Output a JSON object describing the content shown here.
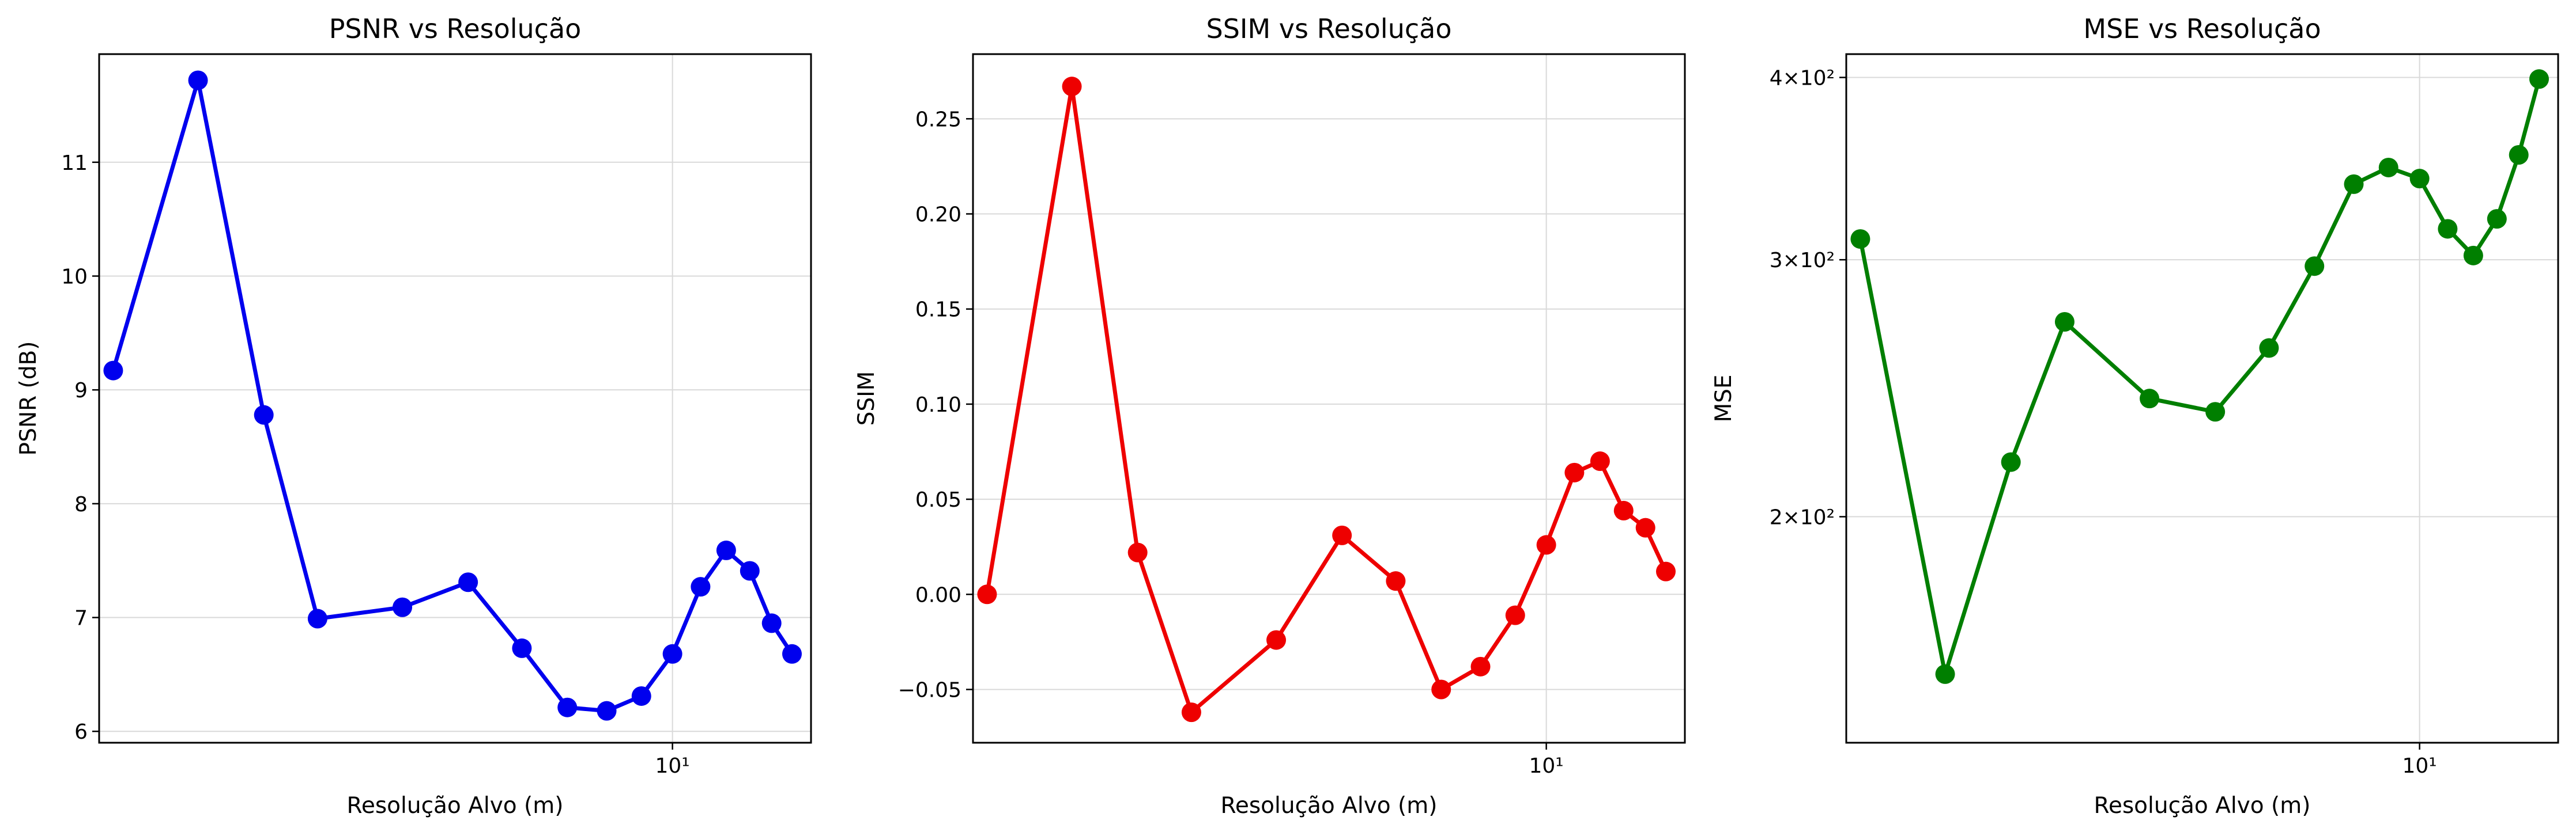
{
  "chart_data": [
    {
      "type": "line",
      "title": "PSNR vs Resolução",
      "xlabel": "Resolução Alvo (m)",
      "ylabel": "PSNR (dB)",
      "xscale": "log",
      "yscale": "linear",
      "xlim": [
        1.43,
        16.0
      ],
      "ylim": [
        5.9,
        11.95
      ],
      "yticks": [
        6,
        7,
        8,
        9,
        10,
        11
      ],
      "ytick_labels": [
        "6",
        "7",
        "8",
        "9",
        "10",
        "11"
      ],
      "xticks": [
        10
      ],
      "xtick_labels": [
        "10¹"
      ],
      "grid": true,
      "color": "#0000ee",
      "x": [
        1.5,
        2,
        2.5,
        3,
        4,
        5,
        6,
        7,
        8,
        9,
        10,
        11,
        12,
        13,
        14,
        15
      ],
      "y": [
        9.17,
        11.72,
        8.78,
        6.99,
        7.09,
        7.31,
        6.73,
        6.21,
        6.18,
        6.31,
        6.68,
        7.27,
        7.59,
        7.41,
        6.95,
        6.68
      ]
    },
    {
      "type": "line",
      "title": "SSIM vs Resolução",
      "xlabel": "Resolução Alvo (m)",
      "ylabel": "SSIM",
      "xscale": "log",
      "yscale": "linear",
      "xlim": [
        1.43,
        16.0
      ],
      "ylim": [
        -0.078,
        0.284
      ],
      "yticks": [
        -0.05,
        0,
        0.05,
        0.1,
        0.15,
        0.2,
        0.25
      ],
      "ytick_labels": [
        "−0.05",
        "0.00",
        "0.05",
        "0.10",
        "0.15",
        "0.20",
        "0.25"
      ],
      "xticks": [
        10
      ],
      "xtick_labels": [
        "10¹"
      ],
      "grid": true,
      "color": "#ee0000",
      "x": [
        1.5,
        2,
        2.5,
        3,
        4,
        5,
        6,
        7,
        8,
        9,
        10,
        11,
        12,
        13,
        14,
        15
      ],
      "y": [
        0.0,
        0.267,
        0.022,
        -0.062,
        -0.024,
        0.031,
        0.007,
        -0.05,
        -0.038,
        -0.011,
        0.026,
        0.064,
        0.07,
        0.044,
        0.035,
        0.012
      ]
    },
    {
      "type": "line",
      "title": "MSE vs Resolução",
      "xlabel": "Resolução Alvo (m)",
      "ylabel": "MSE",
      "xscale": "log",
      "yscale": "log",
      "xlim": [
        1.43,
        16.0
      ],
      "ylim": [
        140,
        415
      ],
      "yticks": [
        200,
        300,
        400
      ],
      "ytick_labels": [
        "2×10²",
        "3×10²",
        "4×10²"
      ],
      "xticks": [
        10
      ],
      "xtick_labels": [
        "10¹"
      ],
      "grid": true,
      "color": "#007f00",
      "x": [
        1.5,
        2,
        2.5,
        3,
        4,
        5,
        6,
        7,
        8,
        9,
        10,
        11,
        12,
        13,
        14,
        15
      ],
      "y": [
        310,
        156,
        218,
        272,
        241,
        236,
        261,
        297,
        338,
        347,
        341,
        315,
        302,
        320,
        354,
        399
      ]
    }
  ]
}
